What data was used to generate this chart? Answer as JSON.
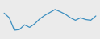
{
  "x": [
    0,
    1,
    2,
    3,
    4,
    5,
    6,
    7,
    8,
    9,
    10,
    11,
    12,
    13,
    14,
    15,
    16,
    17,
    18
  ],
  "y": [
    68,
    55,
    20,
    22,
    35,
    28,
    38,
    52,
    62,
    70,
    78,
    72,
    65,
    55,
    48,
    55,
    50,
    48,
    60
  ],
  "line_color": "#3d8fc0",
  "linewidth": 0.9,
  "background_color": "#ebebeb"
}
